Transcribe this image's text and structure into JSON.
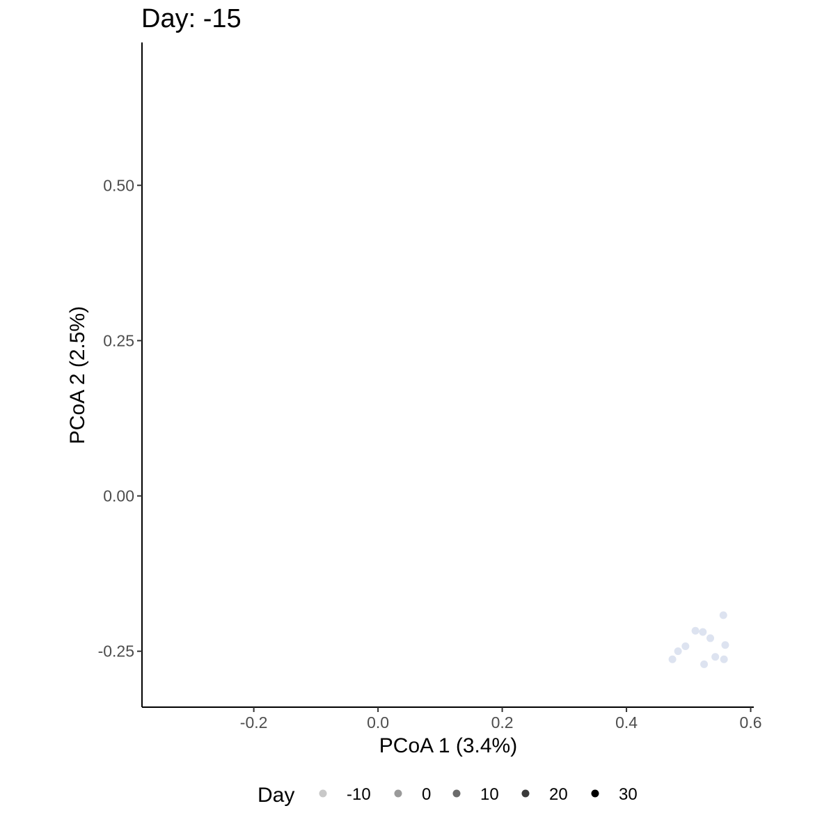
{
  "chart_data": {
    "type": "scatter",
    "title": "Day: -15",
    "xlabel": "PCoA 1 (3.4%)",
    "ylabel": "PCoA 2 (2.5%)",
    "xlim": [
      -0.38,
      0.605
    ],
    "ylim": [
      -0.34,
      0.73
    ],
    "x_ticks": [
      -0.2,
      0.0,
      0.2,
      0.4,
      0.6
    ],
    "x_tick_labels": [
      "-0.2",
      "0.0",
      "0.2",
      "0.4",
      "0.6"
    ],
    "y_ticks": [
      0.5,
      0.25,
      0.0,
      -0.25
    ],
    "y_tick_labels": [
      "0.50",
      "0.25",
      "0.00",
      "-0.25"
    ],
    "grid": false,
    "point_color": "#dde3f0",
    "series": [
      {
        "points": [
          {
            "x": 0.556,
            "y": -0.192
          },
          {
            "x": 0.511,
            "y": -0.217
          },
          {
            "x": 0.523,
            "y": -0.219
          },
          {
            "x": 0.535,
            "y": -0.229
          },
          {
            "x": 0.559,
            "y": -0.24
          },
          {
            "x": 0.495,
            "y": -0.242
          },
          {
            "x": 0.483,
            "y": -0.25
          },
          {
            "x": 0.543,
            "y": -0.259
          },
          {
            "x": 0.474,
            "y": -0.263
          },
          {
            "x": 0.557,
            "y": -0.263
          },
          {
            "x": 0.525,
            "y": -0.271
          }
        ]
      }
    ],
    "legend": {
      "title": "Day",
      "position": "bottom",
      "items": [
        {
          "label": "-10",
          "color": "#c8c8c8"
        },
        {
          "label": "0",
          "color": "#9a9a9a"
        },
        {
          "label": "10",
          "color": "#6b6b6b"
        },
        {
          "label": "20",
          "color": "#3a3a3a"
        },
        {
          "label": "30",
          "color": "#000000"
        }
      ]
    }
  }
}
